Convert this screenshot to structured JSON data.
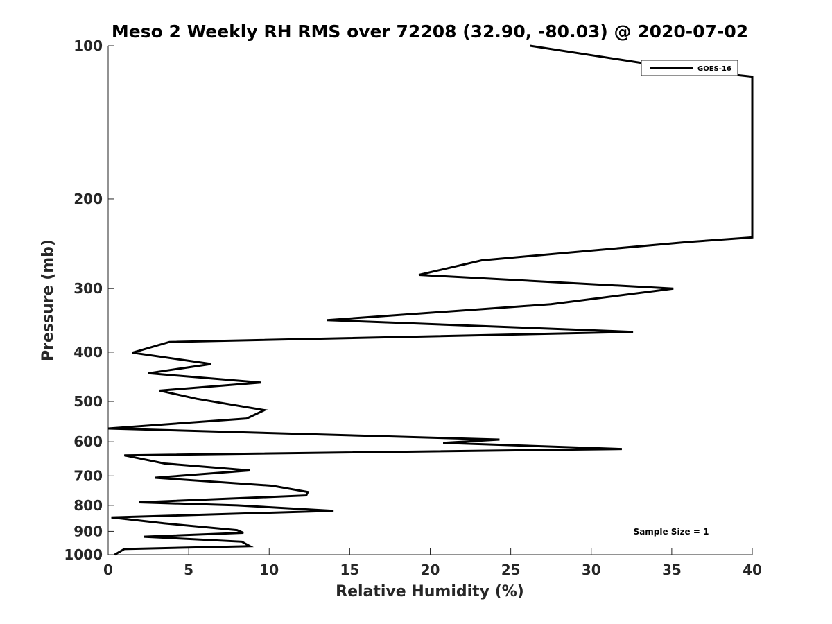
{
  "chart_data": {
    "type": "line",
    "title": "Meso 2 Weekly RH RMS over 72208 (32.90, -80.03) @ 2020-07-02",
    "xlabel": "Relative Humidity (%)",
    "ylabel": "Pressure (mb)",
    "xlim": [
      0,
      40
    ],
    "ylim": [
      100,
      1000
    ],
    "yscale": "log-reversed",
    "xticks": [
      0,
      5,
      10,
      15,
      20,
      25,
      30,
      35,
      40
    ],
    "yticks": [
      100,
      200,
      300,
      400,
      500,
      600,
      700,
      800,
      900,
      1000
    ],
    "legend": {
      "position": "top-right",
      "entries": [
        "GOES-16"
      ]
    },
    "annotation": "Sample Size = 1",
    "series": [
      {
        "name": "GOES-16",
        "color": "#000000",
        "points": [
          [
            26.2,
            100
          ],
          [
            35.5,
            111
          ],
          [
            40.0,
            115
          ],
          [
            40.0,
            238
          ],
          [
            36.0,
            243
          ],
          [
            23.2,
            264
          ],
          [
            19.3,
            282
          ],
          [
            35.1,
            300
          ],
          [
            27.5,
            322
          ],
          [
            13.6,
            346
          ],
          [
            32.6,
            365
          ],
          [
            3.8,
            382
          ],
          [
            1.5,
            401
          ],
          [
            6.4,
            422
          ],
          [
            2.5,
            440
          ],
          [
            9.5,
            459
          ],
          [
            3.2,
            476
          ],
          [
            5.5,
            494
          ],
          [
            9.7,
            520
          ],
          [
            8.6,
            540
          ],
          [
            0.0,
            565
          ],
          [
            24.3,
            594
          ],
          [
            20.8,
            603
          ],
          [
            31.9,
            620
          ],
          [
            1.0,
            638
          ],
          [
            3.5,
            662
          ],
          [
            8.8,
            683
          ],
          [
            2.9,
            706
          ],
          [
            10.2,
            732
          ],
          [
            12.4,
            753
          ],
          [
            12.3,
            765
          ],
          [
            1.9,
            789
          ],
          [
            8.0,
            800
          ],
          [
            14.0,
            820
          ],
          [
            0.2,
            845
          ],
          [
            3.5,
            868
          ],
          [
            8.0,
            895
          ],
          [
            8.4,
            906
          ],
          [
            2.2,
            922
          ],
          [
            8.3,
            943
          ],
          [
            8.8,
            962
          ],
          [
            1.0,
            975
          ],
          [
            0.4,
            1000
          ]
        ]
      }
    ]
  }
}
